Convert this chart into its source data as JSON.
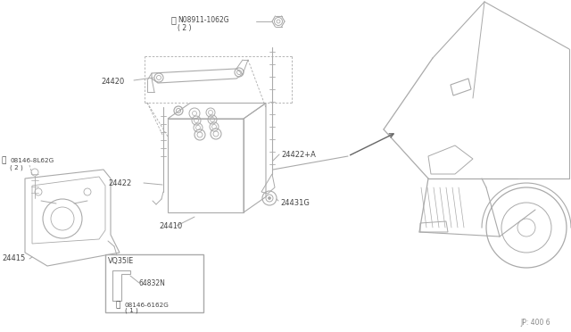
{
  "bg_color": "#ffffff",
  "lc": "#aaaaaa",
  "dc": "#666666",
  "tc": "#444444",
  "page_ref": "JP: 400 6",
  "labels": {
    "N08911_1062G": "N08911-1062G",
    "N08911_1062G_qty": "( 2 )",
    "24420": "24420",
    "24422": "24422",
    "24422A": "24422+A",
    "24415": "24415",
    "24410": "24410",
    "24431G": "24431G",
    "B08146_8L62G": "08146-8L62G",
    "B08146_8L62G_qty": "( 2 )",
    "VQ35DE": "VQ35IE",
    "64832N": "64832N",
    "B08146_6162G": "08146-6162G",
    "B08146_6162G_qty": "( 1 )"
  }
}
